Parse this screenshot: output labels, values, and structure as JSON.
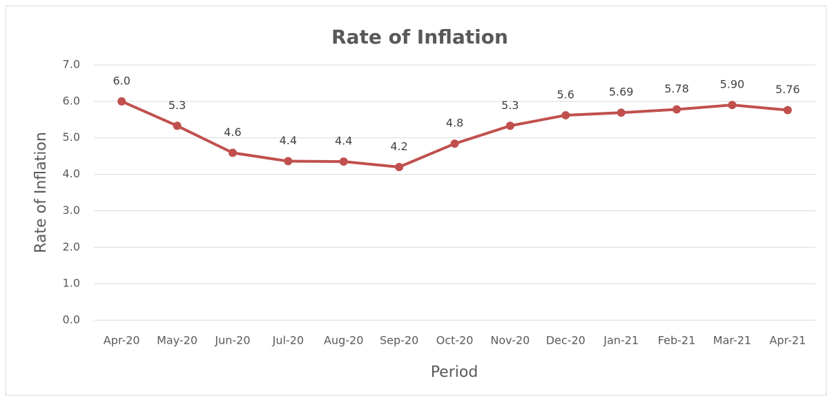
{
  "chart_data": {
    "type": "line",
    "title": "Rate of Inflation",
    "x_label": "Period",
    "y_label": "Rate of Inflation",
    "categories": [
      "Apr-20",
      "May-20",
      "Jun-20",
      "Jul-20",
      "Aug-20",
      "Sep-20",
      "Oct-20",
      "Nov-20",
      "Dec-20",
      "Jan-21",
      "Feb-21",
      "Mar-21",
      "Apr-21"
    ],
    "series": [
      {
        "name": "Rate of Inflation",
        "color": "#c0504d",
        "values": [
          6.0,
          5.33,
          4.59,
          4.36,
          4.35,
          4.2,
          4.84,
          5.33,
          5.62,
          5.69,
          5.78,
          5.9,
          5.76
        ],
        "value_labels": [
          "6.0",
          "5.3",
          "4.6",
          "4.4",
          "4.4",
          "4.2",
          "4.8",
          "5.3",
          "5.6",
          "5.69",
          "5.78",
          "5.90",
          "5.76"
        ]
      }
    ],
    "ylim": [
      0,
      7
    ],
    "yticks": [
      {
        "value": 0,
        "label": "0.0"
      },
      {
        "value": 1,
        "label": "1.0"
      },
      {
        "value": 2,
        "label": "2.0"
      },
      {
        "value": 3,
        "label": "3.0"
      },
      {
        "value": 4,
        "label": "4.0"
      },
      {
        "value": 5,
        "label": "5.0"
      },
      {
        "value": 6,
        "label": "6.0"
      },
      {
        "value": 7,
        "label": "7.0"
      }
    ],
    "grid": true
  }
}
